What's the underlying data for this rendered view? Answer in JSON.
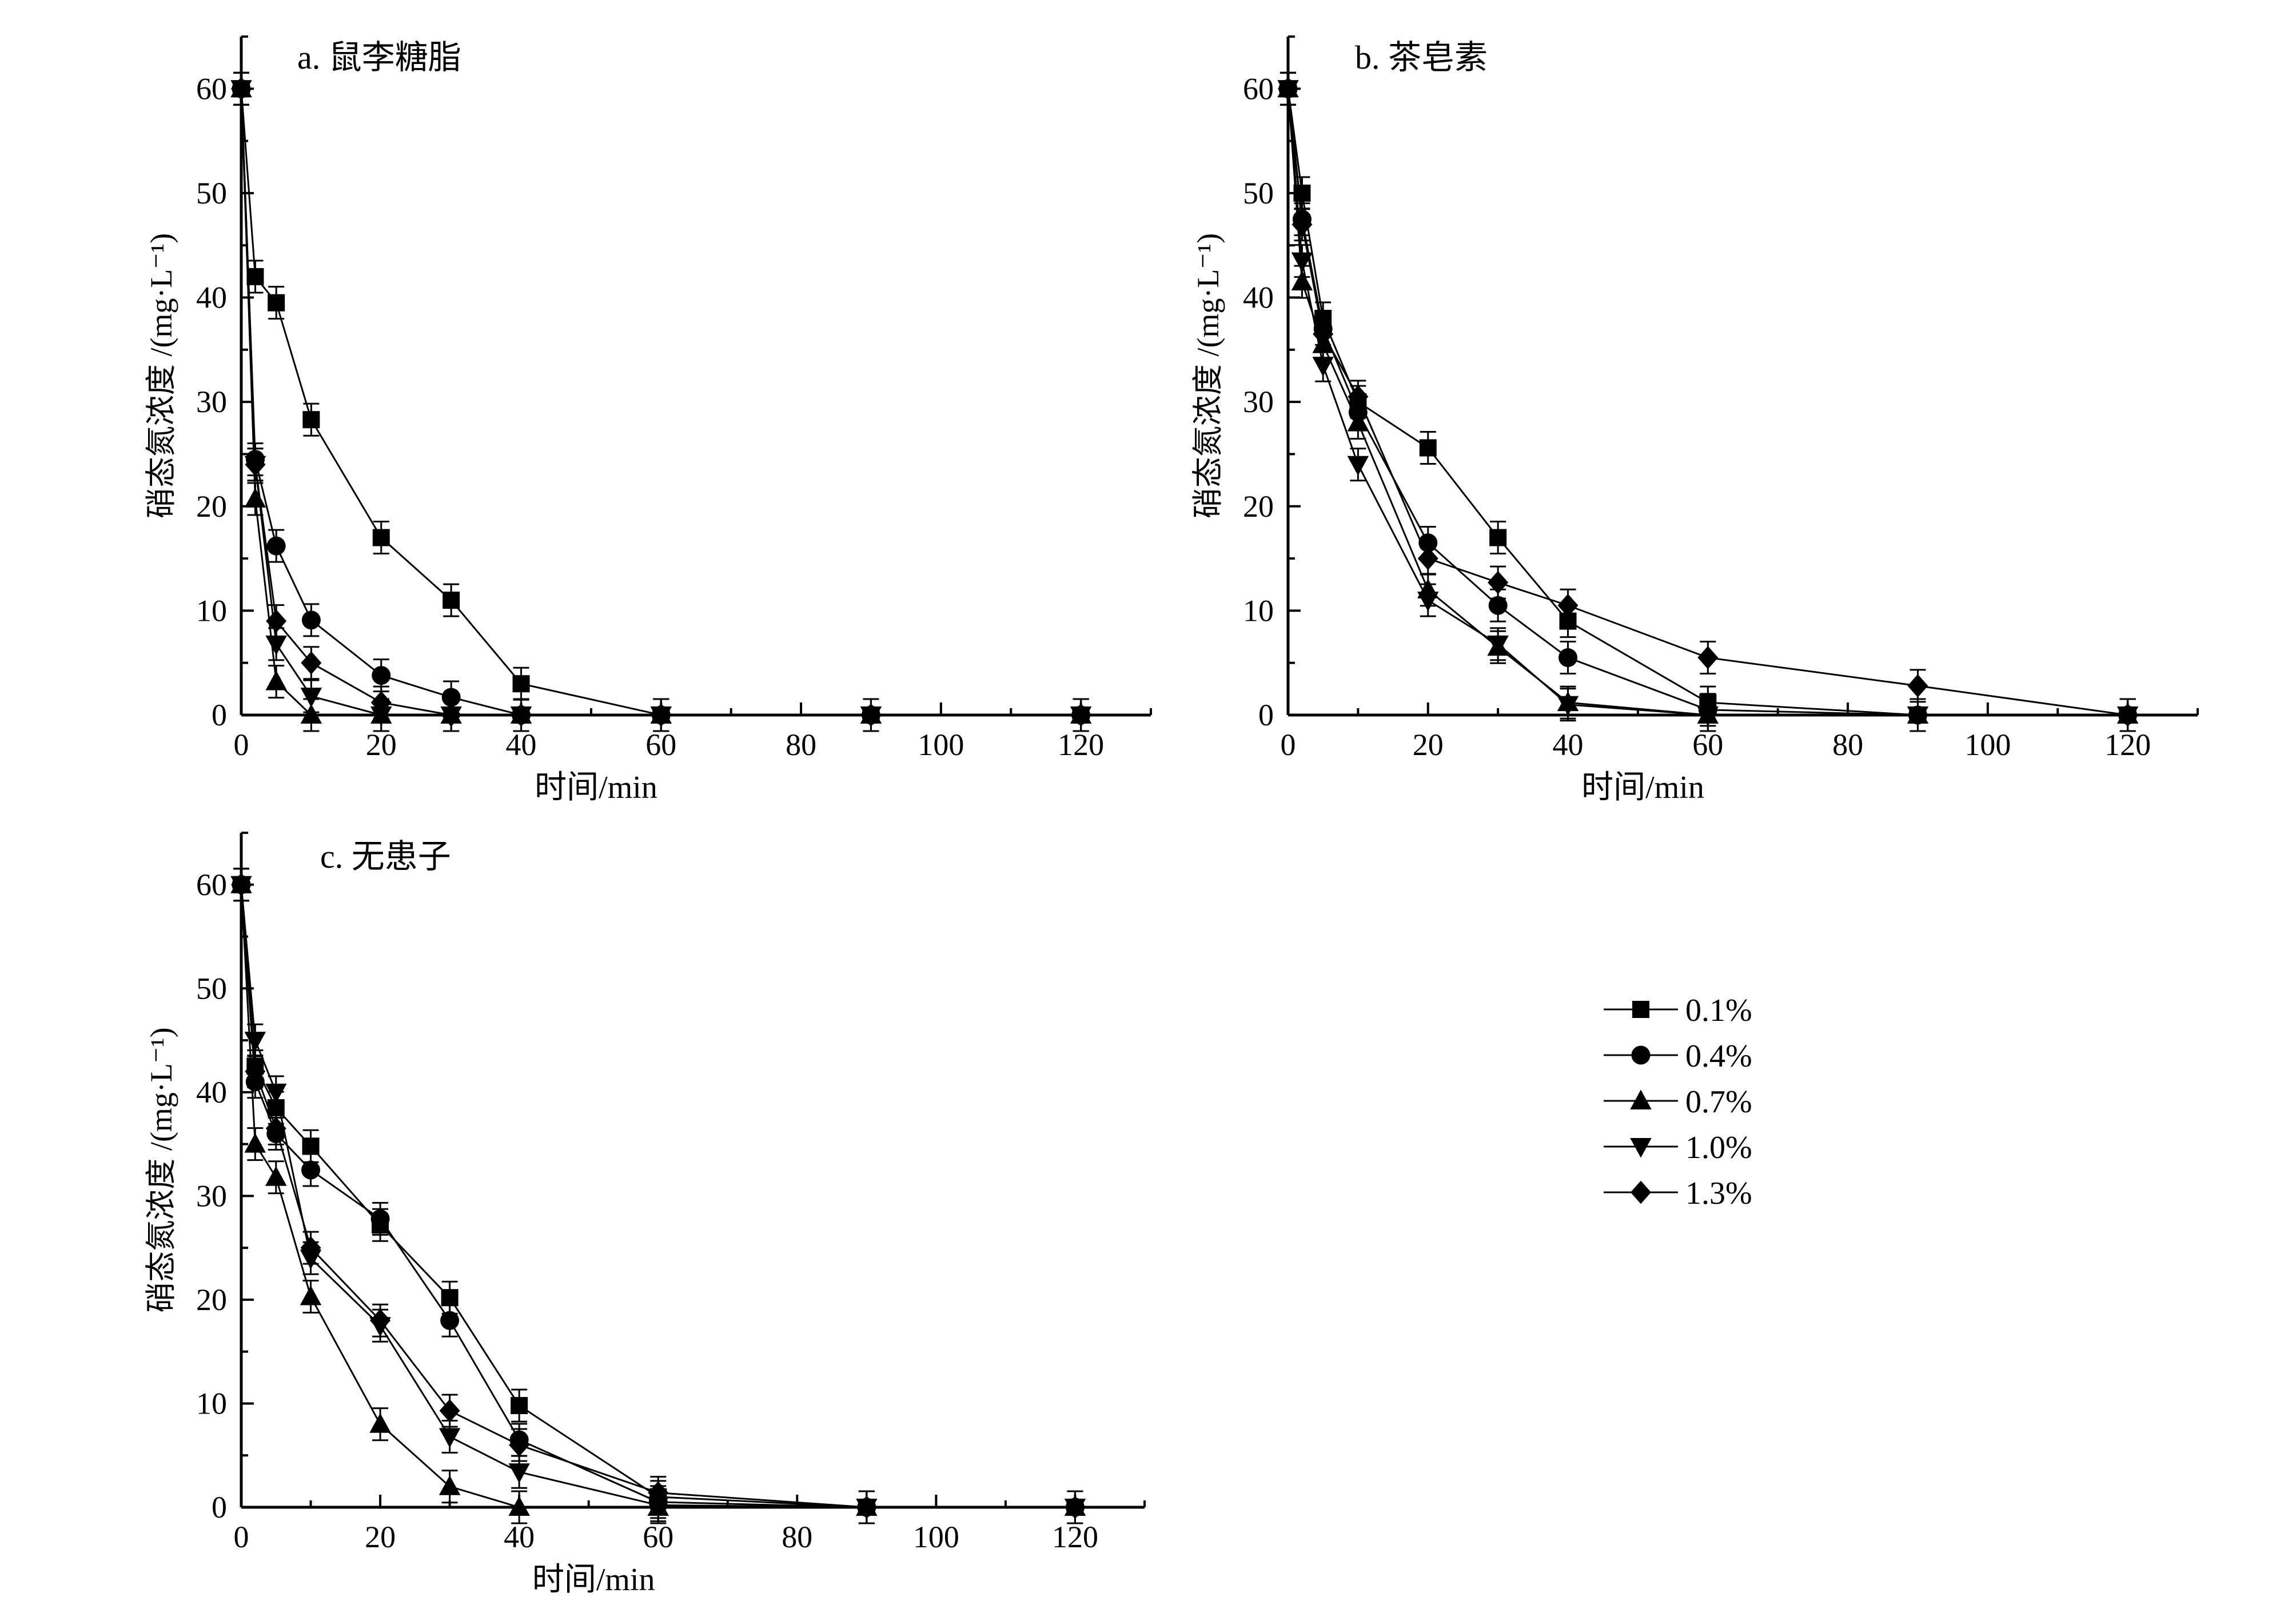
{
  "chart_data": [
    {
      "type": "line",
      "title": "a. 鼠李糖脂",
      "xlabel": "时间/min",
      "ylabel": "硝态氮浓度 /(mg·L⁻¹)",
      "xlim": [
        0,
        130
      ],
      "ylim": [
        0,
        65
      ],
      "xticks": [
        0,
        20,
        40,
        60,
        80,
        100,
        120
      ],
      "yticks": [
        0,
        10,
        20,
        30,
        40,
        50,
        60
      ],
      "x": [
        0,
        2,
        5,
        10,
        20,
        30,
        40,
        60,
        90,
        120
      ],
      "series": [
        {
          "name": "0.1%",
          "marker": "square",
          "values": [
            60,
            42,
            39.5,
            28.3,
            17,
            11,
            3,
            0,
            0,
            0
          ]
        },
        {
          "name": "0.4%",
          "marker": "circle",
          "values": [
            60,
            24.5,
            16.2,
            9.1,
            3.8,
            1.7,
            0,
            0,
            0,
            0
          ]
        },
        {
          "name": "0.7%",
          "marker": "triangle-up",
          "values": [
            60,
            20.7,
            3.2,
            0,
            0,
            0,
            0,
            0,
            0,
            0
          ]
        },
        {
          "name": "1.0%",
          "marker": "triangle-down",
          "values": [
            60,
            24,
            6.8,
            1.8,
            0,
            0,
            0,
            0,
            0,
            0
          ]
        },
        {
          "name": "1.3%",
          "marker": "diamond",
          "values": [
            60,
            24,
            9,
            5,
            1.2,
            0,
            0,
            0,
            0,
            0
          ]
        }
      ]
    },
    {
      "type": "line",
      "title": "b. 茶皂素",
      "xlabel": "时间/min",
      "ylabel": "硝态氮浓度 /(mg·L⁻¹)",
      "xlim": [
        0,
        130
      ],
      "ylim": [
        0,
        65
      ],
      "xticks": [
        0,
        20,
        40,
        60,
        80,
        100,
        120
      ],
      "yticks": [
        0,
        10,
        20,
        30,
        40,
        50,
        60
      ],
      "x": [
        0,
        2,
        5,
        10,
        20,
        30,
        40,
        60,
        90,
        120
      ],
      "series": [
        {
          "name": "0.1%",
          "marker": "square",
          "values": [
            60,
            50,
            38,
            30,
            25.6,
            17,
            9,
            1.2,
            0,
            0
          ]
        },
        {
          "name": "0.4%",
          "marker": "circle",
          "values": [
            60,
            47.5,
            37,
            29,
            16.5,
            10.5,
            5.5,
            0.5,
            0,
            0
          ]
        },
        {
          "name": "0.7%",
          "marker": "triangle-up",
          "values": [
            60,
            41.5,
            35.5,
            28,
            12,
            6.5,
            1.2,
            0,
            0,
            0
          ]
        },
        {
          "name": "1.0%",
          "marker": "triangle-down",
          "values": [
            60,
            43.5,
            33.5,
            24,
            11,
            6.8,
            1,
            0,
            0,
            0
          ]
        },
        {
          "name": "1.3%",
          "marker": "diamond",
          "values": [
            60,
            47,
            36.5,
            30.5,
            15,
            12.7,
            10.5,
            5.5,
            2.8,
            0
          ]
        }
      ]
    },
    {
      "type": "line",
      "title": "c. 无患子",
      "xlabel": "时间/min",
      "ylabel": "硝态氮浓度 /(mg·L⁻¹)",
      "xlim": [
        0,
        130
      ],
      "ylim": [
        0,
        65
      ],
      "xticks": [
        0,
        20,
        40,
        60,
        80,
        100,
        120
      ],
      "yticks": [
        0,
        10,
        20,
        30,
        40,
        50,
        60
      ],
      "x": [
        0,
        2,
        5,
        10,
        20,
        30,
        40,
        60,
        90,
        120
      ],
      "series": [
        {
          "name": "0.1%",
          "marker": "square",
          "values": [
            60,
            42.5,
            38.5,
            34.8,
            27.2,
            20.2,
            9.8,
            1.0,
            0,
            0
          ]
        },
        {
          "name": "0.4%",
          "marker": "circle",
          "values": [
            60,
            41,
            36,
            32.5,
            27.8,
            18,
            6.5,
            0.5,
            0,
            0
          ]
        },
        {
          "name": "0.7%",
          "marker": "triangle-up",
          "values": [
            60,
            35,
            31.8,
            20.3,
            8,
            2,
            0,
            0,
            0,
            0
          ]
        },
        {
          "name": "1.0%",
          "marker": "triangle-down",
          "values": [
            60,
            45,
            40,
            24,
            17.5,
            6.8,
            3.4,
            0.2,
            0,
            0
          ]
        },
        {
          "name": "1.3%",
          "marker": "diamond",
          "values": [
            60,
            42,
            36.5,
            25,
            18,
            9.3,
            6,
            1.4,
            0,
            0
          ]
        }
      ]
    }
  ],
  "legend": {
    "placement": "lower-right",
    "entries": [
      {
        "label": "0.1%",
        "marker": "square"
      },
      {
        "label": "0.4%",
        "marker": "circle"
      },
      {
        "label": "0.7%",
        "marker": "triangle-up"
      },
      {
        "label": "1.0%",
        "marker": "triangle-down"
      },
      {
        "label": "1.3%",
        "marker": "diamond"
      }
    ]
  },
  "colors": {
    "ink": "#000000",
    "background": "#ffffff"
  }
}
